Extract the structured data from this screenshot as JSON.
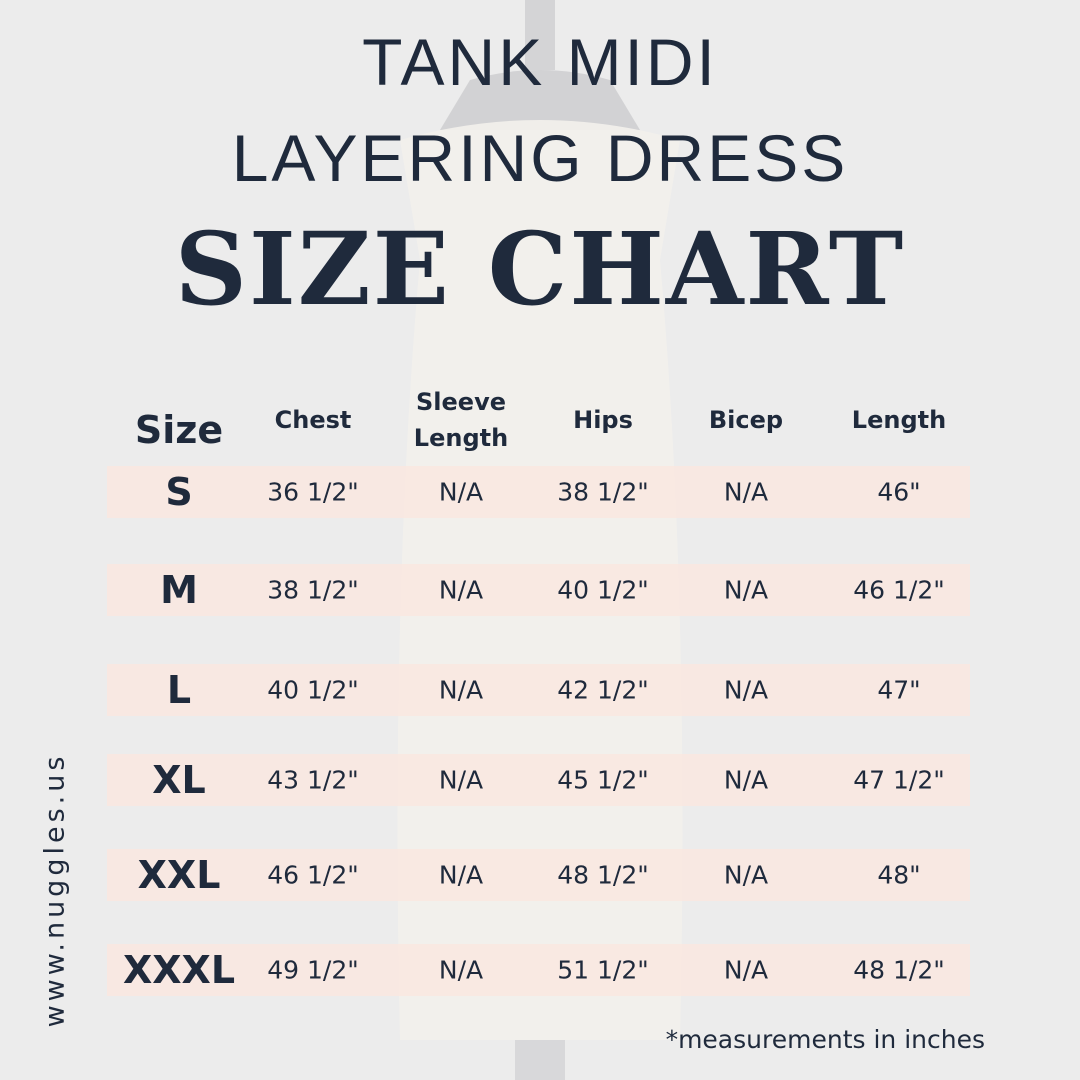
{
  "header": {
    "title_line1": "TANK MIDI",
    "title_line2": "LAYERING DRESS",
    "title_line3": "SIZE CHART"
  },
  "table": {
    "columns": [
      "Size",
      "Chest",
      "Sleeve Length",
      "Hips",
      "Bicep",
      "Length"
    ],
    "rows": [
      [
        "S",
        "36 1/2\"",
        "N/A",
        "38 1/2\"",
        "N/A",
        "46\""
      ],
      [
        "M",
        "38 1/2\"",
        "N/A",
        "40 1/2\"",
        "N/A",
        "46 1/2\""
      ],
      [
        "L",
        "40 1/2\"",
        "N/A",
        "42 1/2\"",
        "N/A",
        "47\""
      ],
      [
        "XL",
        "43 1/2\"",
        "N/A",
        "45 1/2\"",
        "N/A",
        "47 1/2\""
      ],
      [
        "XXL",
        "46 1/2\"",
        "N/A",
        "48 1/2\"",
        "N/A",
        "48\""
      ],
      [
        "XXXL",
        "49 1/2\"",
        "N/A",
        "51 1/2\"",
        "N/A",
        "48 1/2\""
      ]
    ]
  },
  "website": "www.nuggles.us",
  "footnote": "*measurements in inches"
}
